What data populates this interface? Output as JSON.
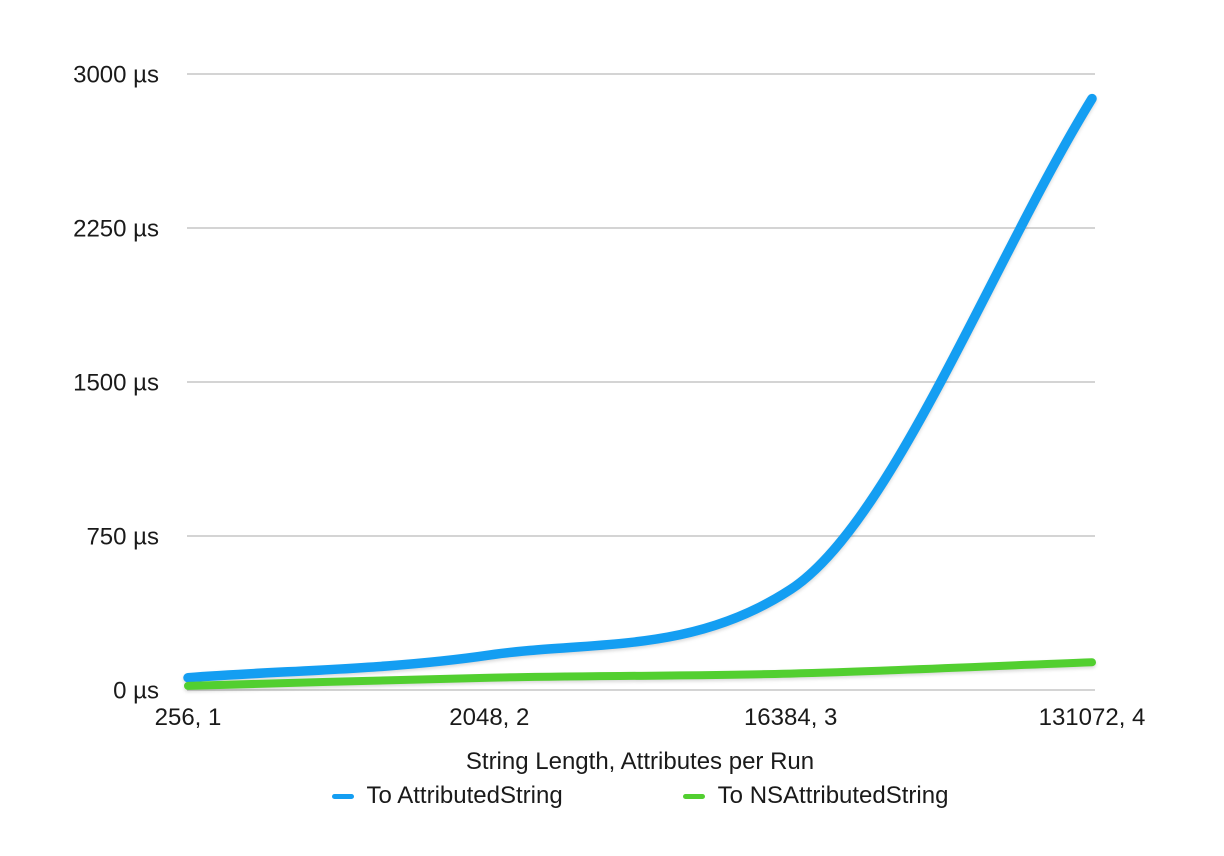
{
  "colors": {
    "background": "#ffffff",
    "grid": "#d4d4d4",
    "text": "#1a1a1a",
    "blue_series": "#149EF2",
    "green_series": "#52CF30"
  },
  "chart_data": {
    "type": "line",
    "title": "",
    "xlabel": "String Length, Attributes per Run",
    "ylabel": "",
    "unit": "µs",
    "categories": [
      "256, 1",
      "2048, 2",
      "16384, 3",
      "131072, 4"
    ],
    "y_ticks": [
      {
        "value": 0,
        "label": "0 µs"
      },
      {
        "value": 750,
        "label": "750 µs"
      },
      {
        "value": 1500,
        "label": "1500 µs"
      },
      {
        "value": 2250,
        "label": "2250 µs"
      },
      {
        "value": 3000,
        "label": "3000 µs"
      }
    ],
    "ylim": [
      0,
      3000
    ],
    "grid": true,
    "legend_position": "bottom",
    "line_style": "smooth-monotone",
    "series": [
      {
        "name": "To AttributedString",
        "color": "#149EF2",
        "stroke_width": 9.5,
        "values": [
          60,
          170,
          490,
          2880
        ]
      },
      {
        "name": "To NSAttributedString",
        "color": "#52CF30",
        "stroke_width": 8,
        "values": [
          20,
          60,
          80,
          135
        ]
      }
    ]
  }
}
